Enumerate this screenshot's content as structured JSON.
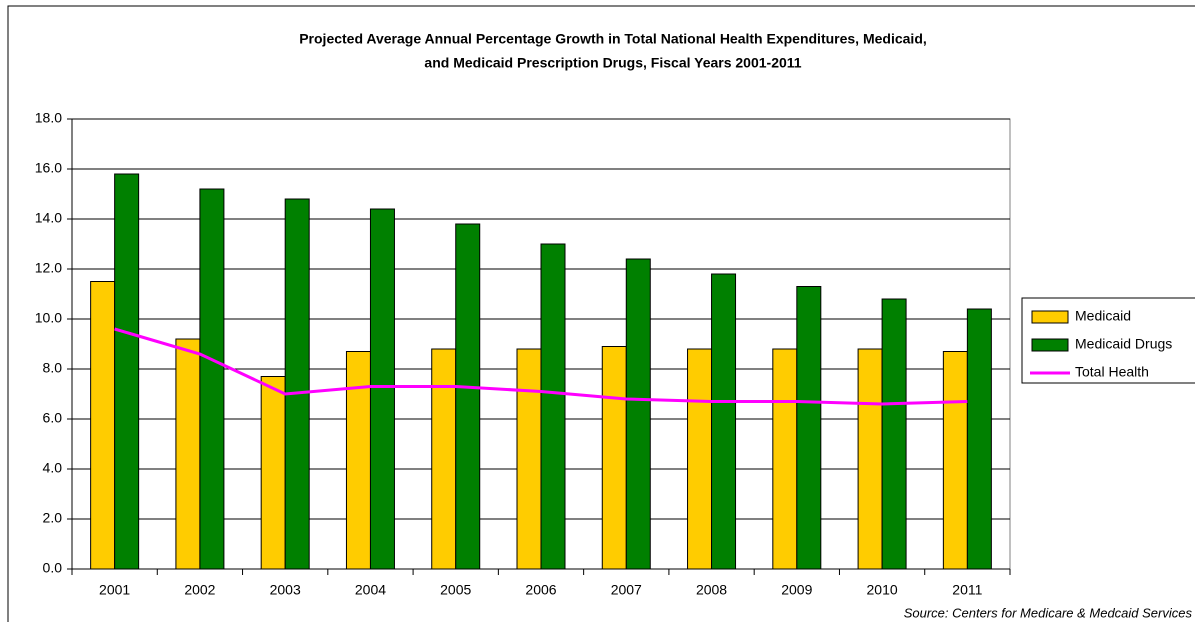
{
  "chart_data": {
    "type": "bar_line",
    "title": [
      "Projected Average Annual Percentage Growth in Total National Health Expenditures, Medicaid,",
      "and Medicaid Prescription Drugs, Fiscal Years 2001-2011"
    ],
    "categories": [
      "2001",
      "2002",
      "2003",
      "2004",
      "2005",
      "2006",
      "2007",
      "2008",
      "2009",
      "2010",
      "2011"
    ],
    "series": [
      {
        "name": "Medicaid",
        "type": "bar",
        "color": "#ffcc00",
        "values": [
          11.5,
          9.2,
          7.7,
          8.7,
          8.8,
          8.8,
          8.9,
          8.8,
          8.8,
          8.8,
          8.7
        ]
      },
      {
        "name": "Medicaid Drugs",
        "type": "bar",
        "color": "#008000",
        "values": [
          15.8,
          15.2,
          14.8,
          14.4,
          13.8,
          13.0,
          12.4,
          11.8,
          11.3,
          10.8,
          10.4
        ]
      },
      {
        "name": "Total Health",
        "type": "line",
        "color": "#ff00ff",
        "values": [
          9.6,
          8.6,
          7.0,
          7.3,
          7.3,
          7.1,
          6.8,
          6.7,
          6.7,
          6.6,
          6.7
        ]
      }
    ],
    "ylim": [
      0,
      18
    ],
    "yticks": [
      {
        "value": 0,
        "label": "0.0"
      },
      {
        "value": 2,
        "label": "2.0"
      },
      {
        "value": 4,
        "label": "4.0"
      },
      {
        "value": 6,
        "label": "6.0"
      },
      {
        "value": 8,
        "label": "8.0"
      },
      {
        "value": 10,
        "label": "10.0"
      },
      {
        "value": 12,
        "label": "12.0"
      },
      {
        "value": 14,
        "label": "14.0"
      },
      {
        "value": 16,
        "label": "16.0"
      },
      {
        "value": 18,
        "label": "18.0"
      }
    ],
    "grid": true,
    "legend": "right",
    "source": "Source: Centers for Medicare & Medcaid Services"
  }
}
